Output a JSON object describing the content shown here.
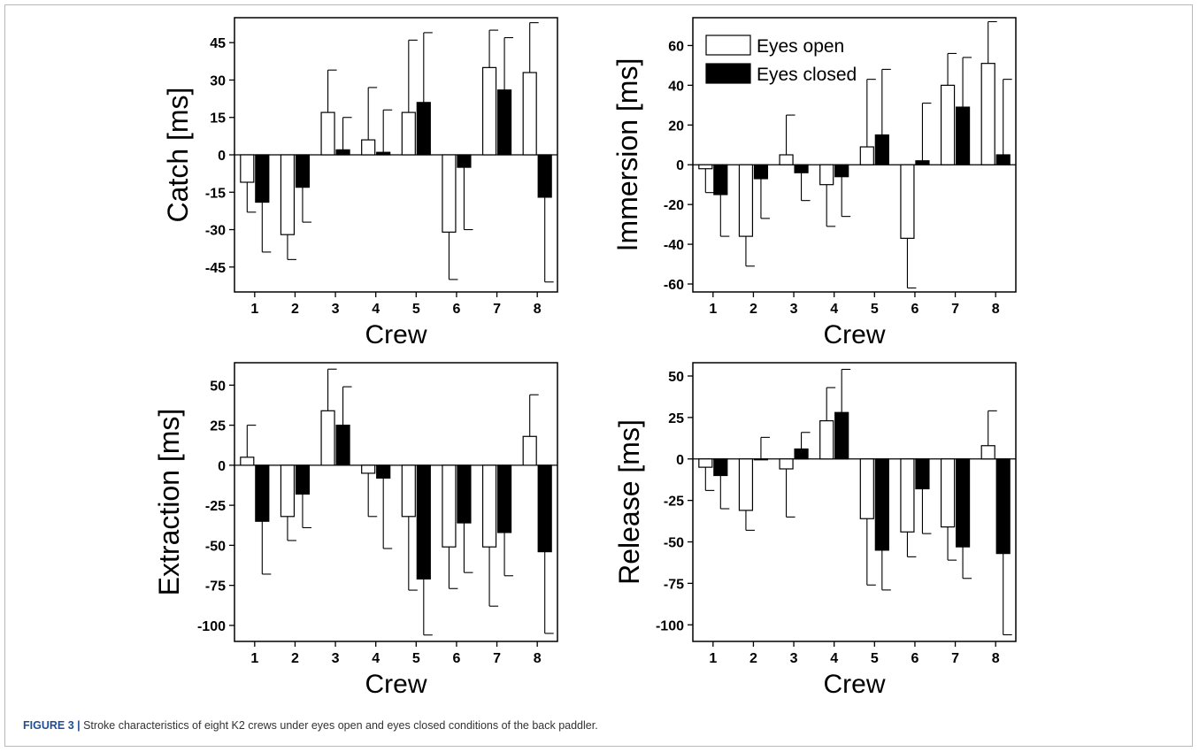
{
  "figure": {
    "caption_label": "FIGURE 3 |",
    "caption_text": " Stroke characteristics of eight K2 crews under eyes open and eyes closed conditions of the back paddler."
  },
  "legend": {
    "position": "top-left of Immersion panel",
    "entries": [
      {
        "label": "Eyes open",
        "color": "#ffffff"
      },
      {
        "label": "Eyes closed",
        "color": "#000000"
      }
    ]
  },
  "chart_data": [
    {
      "type": "bar",
      "ylabel": "Catch [ms]",
      "xlabel": "Crew",
      "categories": [
        "1",
        "2",
        "3",
        "4",
        "5",
        "6",
        "7",
        "8"
      ],
      "ylim": [
        -55,
        55
      ],
      "yticks": [
        45,
        30,
        15,
        0,
        -15,
        -30,
        -45
      ],
      "ytick_labels": [
        "45",
        "30",
        "15",
        "0",
        "-15",
        "-30",
        "-45"
      ],
      "grid": false,
      "series": [
        {
          "name": "Eyes open",
          "color": "#ffffff",
          "values": [
            -11,
            -32,
            17,
            6,
            17,
            -31,
            35,
            33
          ],
          "errors": [
            12,
            10,
            17,
            21,
            29,
            19,
            15,
            20
          ]
        },
        {
          "name": "Eyes closed",
          "color": "#000000",
          "values": [
            -19,
            -13,
            2,
            1,
            21,
            -5,
            26,
            -17
          ],
          "errors": [
            20,
            14,
            13,
            17,
            28,
            25,
            21,
            34
          ]
        }
      ]
    },
    {
      "type": "bar",
      "ylabel": "Immersion [ms]",
      "xlabel": "Crew",
      "categories": [
        "1",
        "2",
        "3",
        "4",
        "5",
        "6",
        "7",
        "8"
      ],
      "ylim": [
        -64,
        74
      ],
      "yticks": [
        60,
        40,
        20,
        0,
        -20,
        -40,
        -60
      ],
      "ytick_labels": [
        "60",
        "40",
        "20",
        "0",
        "-20",
        "-40",
        "-60"
      ],
      "grid": false,
      "legend": "top-left",
      "series": [
        {
          "name": "Eyes open",
          "color": "#ffffff",
          "values": [
            -2,
            -36,
            5,
            -10,
            9,
            -37,
            40,
            51
          ],
          "errors": [
            12,
            15,
            20,
            21,
            34,
            25,
            16,
            21
          ]
        },
        {
          "name": "Eyes closed",
          "color": "#000000",
          "values": [
            -15,
            -7,
            -4,
            -6,
            15,
            2,
            29,
            5
          ],
          "errors": [
            21,
            20,
            14,
            20,
            33,
            29,
            25,
            38
          ]
        }
      ]
    },
    {
      "type": "bar",
      "ylabel": "Extraction [ms]",
      "xlabel": "Crew",
      "categories": [
        "1",
        "2",
        "3",
        "4",
        "5",
        "6",
        "7",
        "8"
      ],
      "ylim": [
        -110,
        64
      ],
      "yticks": [
        50,
        25,
        0,
        -25,
        -50,
        -75,
        -100
      ],
      "ytick_labels": [
        "50",
        "25",
        "0",
        "-25",
        "-50",
        "-75",
        "-100"
      ],
      "grid": false,
      "series": [
        {
          "name": "Eyes open",
          "color": "#ffffff",
          "values": [
            5,
            -32,
            34,
            -5,
            -32,
            -51,
            -51,
            18
          ],
          "errors": [
            20,
            15,
            26,
            27,
            46,
            26,
            37,
            26
          ]
        },
        {
          "name": "Eyes closed",
          "color": "#000000",
          "values": [
            -35,
            -18,
            25,
            -8,
            -71,
            -36,
            -42,
            -54
          ],
          "errors": [
            33,
            21,
            24,
            44,
            35,
            31,
            27,
            51
          ]
        }
      ]
    },
    {
      "type": "bar",
      "ylabel": "Release [ms]",
      "xlabel": "Crew",
      "categories": [
        "1",
        "2",
        "3",
        "4",
        "5",
        "6",
        "7",
        "8"
      ],
      "ylim": [
        -110,
        58
      ],
      "yticks": [
        50,
        25,
        0,
        -25,
        -50,
        -75,
        -100
      ],
      "ytick_labels": [
        "50",
        "25",
        "0",
        "-25",
        "-50",
        "-75",
        "-100"
      ],
      "grid": false,
      "series": [
        {
          "name": "Eyes open",
          "color": "#ffffff",
          "values": [
            -5,
            -31,
            -6,
            23,
            -36,
            -44,
            -41,
            8
          ],
          "errors": [
            14,
            12,
            29,
            20,
            40,
            15,
            20,
            21
          ]
        },
        {
          "name": "Eyes closed",
          "color": "#000000",
          "values": [
            -10,
            0,
            6,
            28,
            -55,
            -18,
            -53,
            -57
          ],
          "errors": [
            20,
            13,
            10,
            26,
            24,
            27,
            19,
            49
          ]
        }
      ]
    }
  ]
}
